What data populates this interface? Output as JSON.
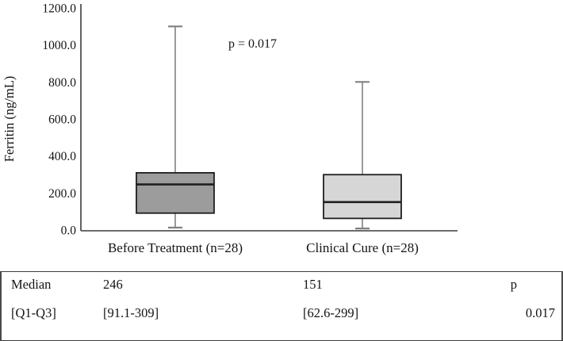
{
  "chart_data": {
    "type": "box",
    "title": "",
    "xlabel": "",
    "ylabel": "Ferritin (ng/mL)",
    "ylim": [
      0,
      1200
    ],
    "grid": false,
    "yticks": [
      0,
      200,
      400,
      600,
      800,
      1000,
      1200
    ],
    "ytick_labels": [
      "0.0",
      "200.0",
      "400.0",
      "600.0",
      "800.0",
      "1000.0",
      "1200.0"
    ],
    "annotation": {
      "text": "p = 0.017"
    },
    "categories": [
      "Before Treatment (n=28)",
      "Clinical Cure (n=28)"
    ],
    "series": [
      {
        "name": "Before Treatment (n=28)",
        "whisker_low": 13,
        "q1": 91.1,
        "median": 246,
        "q3": 309,
        "whisker_high": 1100,
        "fill": "#9c9c9c"
      },
      {
        "name": "Clinical Cure (n=28)",
        "whisker_low": 8,
        "q1": 62.6,
        "median": 151,
        "q3": 299,
        "whisker_high": 800,
        "fill": "#d6d6d6"
      }
    ],
    "colors": {
      "box_border": "#1f1f1f",
      "whisker": "#808080",
      "axis": "#3c3c3c",
      "table_rule": "#3d3d3d"
    }
  },
  "table": {
    "rows": [
      [
        "Median",
        "246",
        "151",
        "p"
      ],
      [
        "[Q1-Q3]",
        "[91.1-309]",
        "[62.6-299]",
        "0.017"
      ]
    ]
  }
}
